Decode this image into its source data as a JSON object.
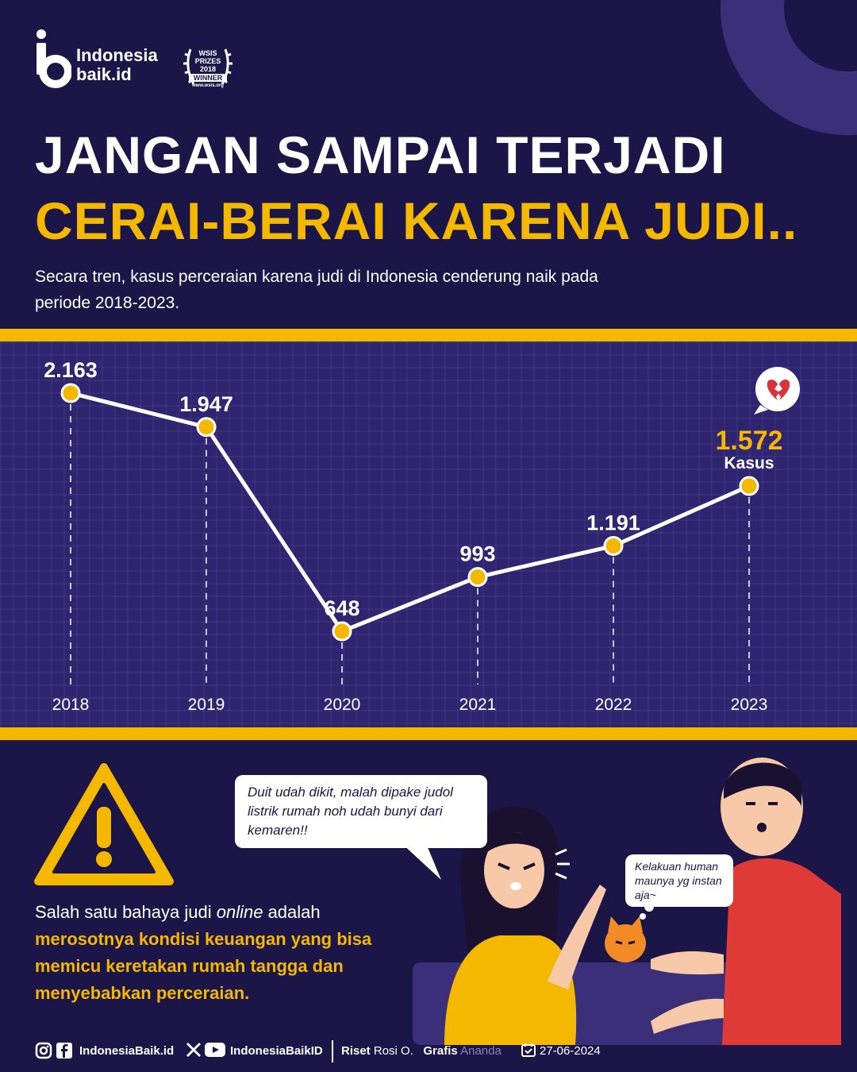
{
  "brand": {
    "logo_text_line1": "Indonesia",
    "logo_text_line2": "baik.id"
  },
  "award": {
    "line1": "WSIS",
    "line2": "PRIZES",
    "line3": "2018",
    "line4": "WINNER",
    "site": "www.wsis.org"
  },
  "title_line1": "JANGAN SAMPAI TERJADI",
  "title_line2": "CERAI-BERAI KARENA JUDI..",
  "subtitle": "Secara tren, kasus perceraian karena judi di Indonesia cenderung naik pada periode 2018-2023.",
  "chart_data": {
    "type": "line",
    "title": "",
    "xlabel": "",
    "ylabel": "",
    "categories": [
      "2018",
      "2019",
      "2020",
      "2021",
      "2022",
      "2023"
    ],
    "x": [
      2018,
      2019,
      2020,
      2021,
      2022,
      2023
    ],
    "values": [
      2163,
      1947,
      648,
      993,
      1191,
      1572
    ],
    "data_labels": [
      "2.163",
      "1.947",
      "648",
      "993",
      "1.191",
      "1.572"
    ],
    "highlight_unit": "Kasus",
    "ylim": [
      0,
      2500
    ],
    "grid": false,
    "colors": {
      "line": "#ffffff",
      "marker": "#f5b800",
      "highlight": "#f5b800"
    }
  },
  "warning_icon": "warning-triangle-icon",
  "body": {
    "part1": "Salah satu bahaya judi ",
    "part2": "online",
    "part3": " adalah",
    "highlight": "merosotnya kondisi keuangan yang bisa memicu keretakan rumah tangga dan menyebabkan perceraian."
  },
  "speech": {
    "woman": "Duit udah dikit, malah dipake judol listrik rumah noh udah bunyi dari kemaren!!",
    "cat": "Kelakuan human maunya yg instan aja~"
  },
  "footer": {
    "social1": "IndonesiaBaik.id",
    "social2": "IndonesiaBaikID",
    "riset_label": "Riset",
    "riset_name": "Rosi O.",
    "grafis_label": "Grafis",
    "grafis_name": "Ananda",
    "date": "27-06-2024"
  },
  "colors": {
    "background": "#1c1547",
    "chart_bg": "#2e2470",
    "accent": "#f5b800"
  }
}
